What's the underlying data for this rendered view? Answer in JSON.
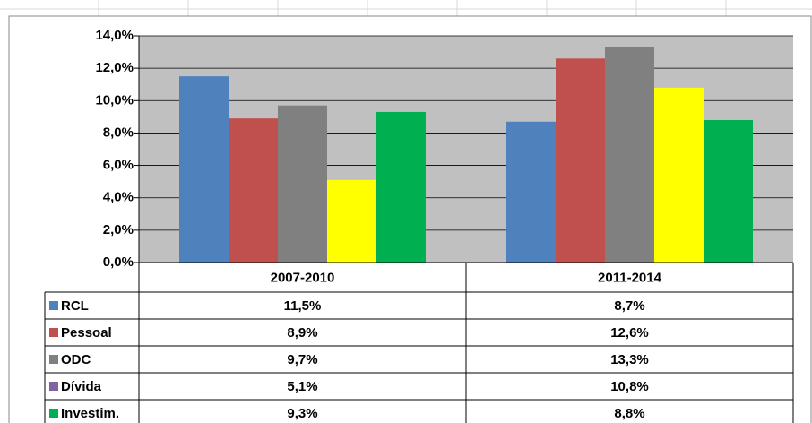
{
  "chart_data": {
    "type": "bar",
    "categories": [
      "2007-2010",
      "2011-2014"
    ],
    "series": [
      {
        "name": "RCL",
        "color": "#4f81bd",
        "values": [
          11.5,
          8.7
        ],
        "value_labels": [
          "11,5%",
          "8,7%"
        ]
      },
      {
        "name": "Pessoal",
        "color": "#c0504d",
        "values": [
          8.9,
          12.6
        ],
        "value_labels": [
          "8,9%",
          "12,6%"
        ]
      },
      {
        "name": "ODC",
        "color": "#808080",
        "values": [
          9.7,
          13.3
        ],
        "value_labels": [
          "9,7%",
          "13,3%"
        ]
      },
      {
        "name": "Dívida",
        "color": "#ffff00",
        "key_color": "#8064a2",
        "values": [
          5.1,
          10.8
        ],
        "value_labels": [
          "5,1%",
          "10,8%"
        ]
      },
      {
        "name": "Investim.",
        "color": "#00b050",
        "values": [
          9.3,
          8.8
        ],
        "value_labels": [
          "9,3%",
          "8,8%"
        ]
      }
    ],
    "ylim": [
      0,
      14
    ],
    "yticks": [
      {
        "value": 0,
        "label": "0,0%"
      },
      {
        "value": 2,
        "label": "2,0%"
      },
      {
        "value": 4,
        "label": "4,0%"
      },
      {
        "value": 6,
        "label": "6,0%"
      },
      {
        "value": 8,
        "label": "8,0%"
      },
      {
        "value": 10,
        "label": "10,0%"
      },
      {
        "value": 12,
        "label": "12,0%"
      },
      {
        "value": 14,
        "label": "14,0%"
      }
    ],
    "grid": true,
    "plot_background": "#c0c0c0"
  }
}
